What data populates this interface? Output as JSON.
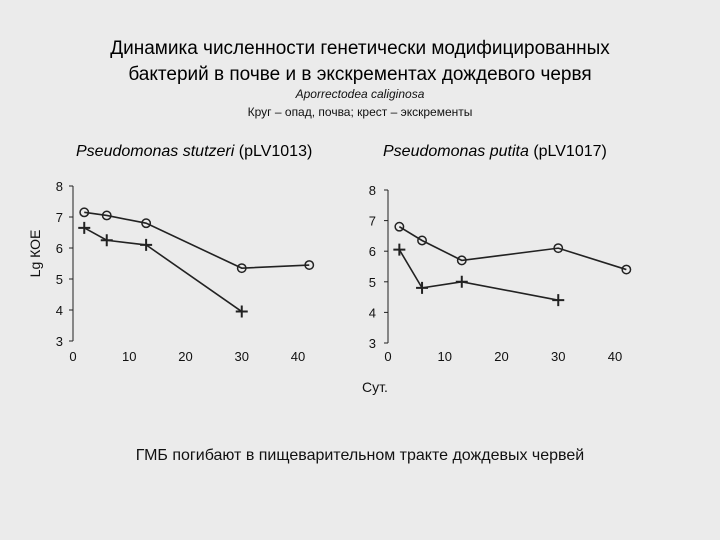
{
  "title_line1": "Динамика численности генетически модифицированных",
  "title_line2": "бактерий в почве и в экскрементах дождевого червя",
  "subtitle": "Aporrectodea caliginosa",
  "caption": "Круг – опад, почва; крест – экскременты",
  "footer": "ГМБ погибают в пищеварительном тракте дождевых червей",
  "colors": {
    "background": "#ebebeb",
    "line": "#222222"
  },
  "chart_data": [
    {
      "type": "line",
      "title_species": "Pseudomonas stutzeri",
      "title_plasmid": " (pLV1013)",
      "ylabel": "Lg КОЕ",
      "xlabel": "",
      "xlim": [
        0,
        40
      ],
      "ylim": [
        3,
        8
      ],
      "xticks": [
        "0",
        "10",
        "20",
        "30",
        "40"
      ],
      "yticks": [
        "3",
        "4",
        "5",
        "6",
        "7",
        "8"
      ],
      "series": [
        {
          "marker": "circle",
          "x": [
            2,
            6,
            13,
            30,
            42
          ],
          "y": [
            7.15,
            7.05,
            6.8,
            5.35,
            5.45
          ]
        },
        {
          "marker": "cross",
          "x": [
            2,
            6,
            13,
            30
          ],
          "y": [
            6.65,
            6.25,
            6.1,
            3.95
          ]
        }
      ]
    },
    {
      "type": "line",
      "title_species": "Pseudomonas putita",
      "title_plasmid": " (pLV1017)",
      "ylabel": "",
      "xlabel": "Сут.",
      "xlim": [
        0,
        40
      ],
      "ylim": [
        3,
        8
      ],
      "xticks": [
        "0",
        "10",
        "20",
        "30",
        "40"
      ],
      "yticks": [
        "3",
        "4",
        "5",
        "6",
        "7",
        "8"
      ],
      "series": [
        {
          "marker": "circle",
          "x": [
            2,
            6,
            13,
            30,
            42
          ],
          "y": [
            6.8,
            6.35,
            5.7,
            6.1,
            5.4
          ]
        },
        {
          "marker": "cross",
          "x": [
            2,
            6,
            13,
            30
          ],
          "y": [
            6.05,
            4.8,
            5.0,
            4.4
          ]
        }
      ]
    }
  ]
}
